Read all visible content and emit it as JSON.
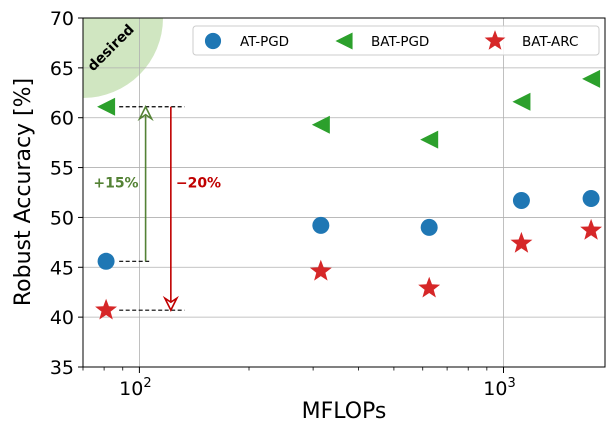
{
  "chart_data": {
    "type": "scatter",
    "xlabel": "MFLOPs",
    "ylabel": "Robust Accuracy [%]",
    "x_scale": "log",
    "xlim": [
      70,
      1900
    ],
    "ylim": [
      35,
      70
    ],
    "x_ticks": [
      {
        "value": 100,
        "base": "10",
        "exp": "2"
      },
      {
        "value": 1000,
        "base": "10",
        "exp": "3"
      }
    ],
    "y_ticks": [
      35,
      40,
      45,
      50,
      55,
      60,
      65,
      70
    ],
    "grid": true,
    "legend_position": "top-right",
    "series": [
      {
        "name": "AT-PGD",
        "marker": "circle",
        "color": "#1f77b4",
        "points": [
          [
            81,
            45.6
          ],
          [
            315,
            49.2
          ],
          [
            625,
            49.0
          ],
          [
            1120,
            51.7
          ],
          [
            1740,
            51.9
          ]
        ]
      },
      {
        "name": "BAT-PGD",
        "marker": "triangle-left",
        "color": "#2ca02c",
        "points": [
          [
            81,
            61.1
          ],
          [
            315,
            59.3
          ],
          [
            625,
            57.8
          ],
          [
            1120,
            61.6
          ],
          [
            1740,
            63.9
          ]
        ]
      },
      {
        "name": "BAT-ARC",
        "marker": "star",
        "color": "#d62728",
        "points": [
          [
            81,
            40.7
          ],
          [
            315,
            44.6
          ],
          [
            625,
            42.9
          ],
          [
            1120,
            47.4
          ],
          [
            1740,
            48.7
          ]
        ]
      }
    ],
    "annotations": {
      "desired_label": "desired",
      "desired_color": "#a9d18e",
      "gain": {
        "text": "+15%",
        "from": 45.6,
        "to": 61.1,
        "x": 104,
        "color": "#548235"
      },
      "drop": {
        "text": "−20%",
        "from": 61.1,
        "to": 40.7,
        "x": 122,
        "color": "#c00000"
      },
      "ref_lines": [
        {
          "y": 61.1,
          "x_from": 88,
          "x_to": 133
        },
        {
          "y": 45.6,
          "x_from": 88,
          "x_to": 108
        },
        {
          "y": 40.7,
          "x_from": 88,
          "x_to": 133
        }
      ]
    }
  }
}
